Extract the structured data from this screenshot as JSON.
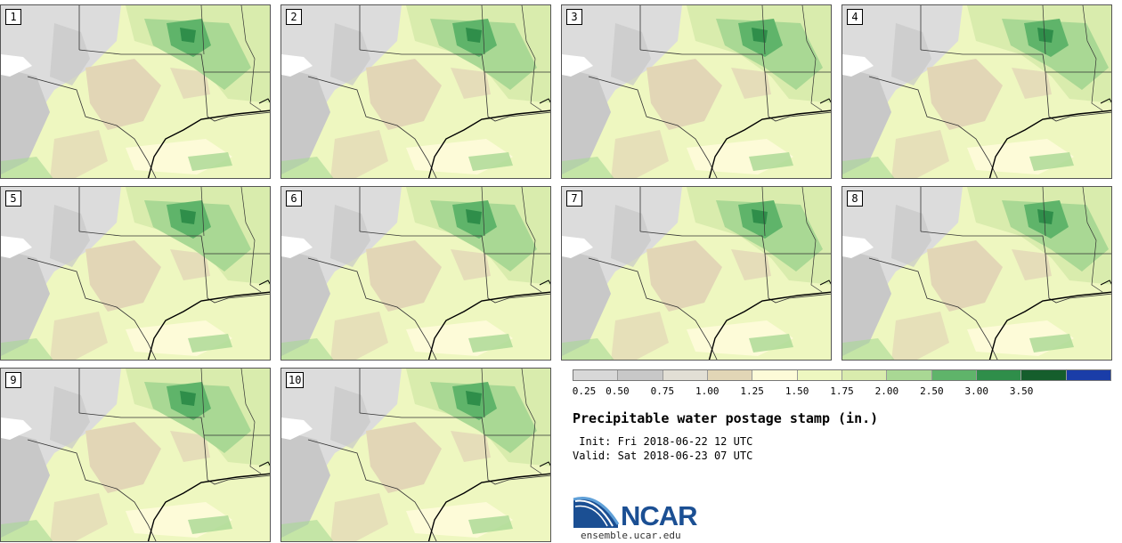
{
  "title": "Precipitable water postage stamp (in.)",
  "init_line": " Init: Fri 2018-06-22 12 UTC",
  "valid_line": "Valid: Sat 2018-06-23 07 UTC",
  "logo": {
    "name": "NCAR",
    "url_text": "ensemble.ucar.edu"
  },
  "members": [
    "1",
    "2",
    "3",
    "4",
    "5",
    "6",
    "7",
    "8",
    "9",
    "10"
  ],
  "colorbar": {
    "tick_labels": [
      "0.25",
      "0.50",
      "0.75",
      "1.00",
      "1.25",
      "1.50",
      "1.75",
      "2.00",
      "2.50",
      "3.00",
      "3.50"
    ],
    "colors": [
      "#d8d8d8",
      "#c8c8c8",
      "#e2dfd5",
      "#e2d6b6",
      "#fdfbd8",
      "#eef7c0",
      "#d9ecad",
      "#a9d894",
      "#5fb46a",
      "#2f8e4a",
      "#155e2c",
      "#1a3da8"
    ]
  },
  "map_colors": {
    "land": "#f5f5d8",
    "gray_light": "#dcdcdc",
    "gray": "#c8c8c8",
    "tan": "#e2d6b6",
    "pale_yellow": "#fdfbd8",
    "light_green": "#eef7c0",
    "green_mid": "#d9ecad",
    "green": "#a9d894",
    "green_dark": "#5fb46a",
    "green_darker": "#2f8e4a",
    "border_line": "#333333"
  }
}
